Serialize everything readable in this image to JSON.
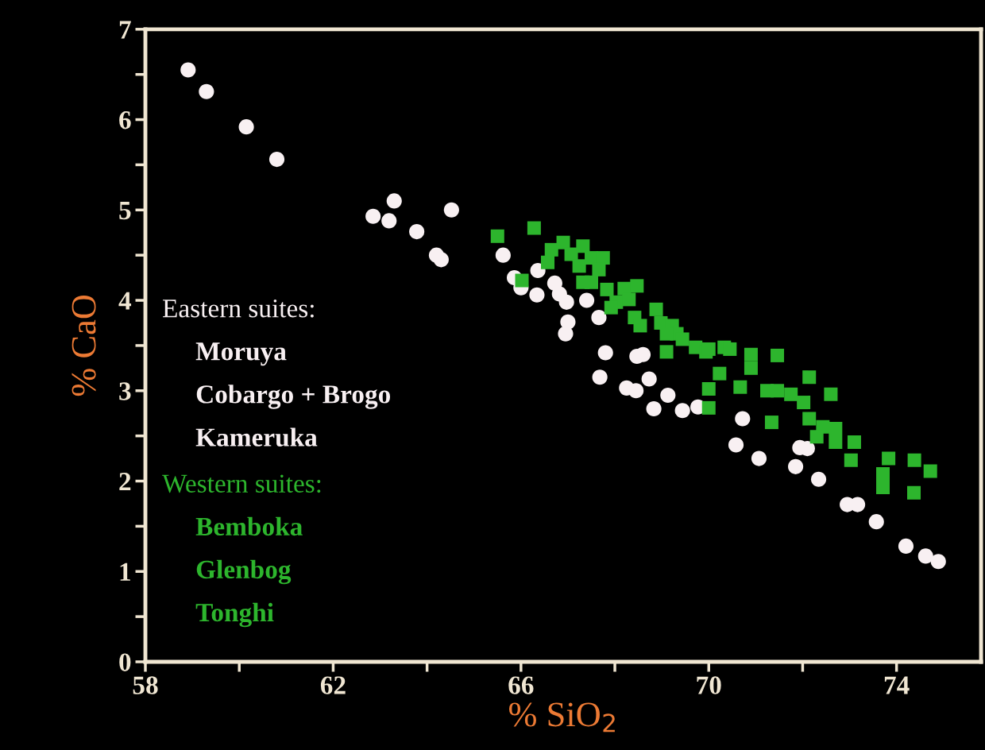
{
  "chart_data": {
    "type": "scatter",
    "xlabel": "% SiO$_{2}$",
    "ylabel": "% CaO",
    "xlim": [
      58,
      75.8
    ],
    "ylim": [
      0,
      7
    ],
    "xticks": [
      58,
      {
        "value": 60,
        "label": null
      },
      62,
      {
        "value": 64,
        "label": null
      },
      66,
      {
        "value": 68,
        "label": null
      },
      70,
      {
        "value": 72,
        "label": null
      },
      74
    ],
    "yticks": [
      0,
      {
        "value": 0.5,
        "label": null
      },
      1,
      {
        "value": 1.5,
        "label": null
      },
      2,
      {
        "value": 2.5,
        "label": null
      },
      3,
      {
        "value": 3.5,
        "label": null
      },
      4,
      {
        "value": 4.5,
        "label": null
      },
      5,
      {
        "value": 5.5,
        "label": null
      },
      6,
      {
        "value": 6.5,
        "label": null
      },
      7
    ],
    "grid": false,
    "legend": "left",
    "annotations": [
      "Moruya",
      "Cobargo + Brogo",
      "Kameruka",
      "Bemboka",
      "Glenbog",
      "Tonghi"
    ],
    "series": [
      {
        "name": "Eastern suites:",
        "color": "#f8f0f2",
        "marker": "circle",
        "x": [
          58.91,
          59.3,
          60.15,
          60.8,
          62.85,
          63.19,
          63.3,
          63.78,
          64.2,
          64.3,
          64.52,
          65.62,
          65.86,
          66.0,
          66.34,
          66.36,
          66.72,
          66.82,
          66.97,
          66.95,
          67.0,
          67.4,
          67.66,
          67.8,
          67.68,
          68.47,
          68.6,
          68.25,
          68.45,
          68.73,
          68.83,
          69.13,
          69.44,
          69.77,
          70.72,
          70.58,
          71.07,
          71.85,
          71.94,
          72.1,
          72.34,
          72.95,
          73.17,
          73.57,
          74.2,
          74.62,
          74.89
        ],
        "values": [
          6.55,
          6.31,
          5.92,
          5.56,
          4.93,
          4.88,
          5.1,
          4.76,
          4.5,
          4.45,
          5.0,
          4.5,
          4.25,
          4.14,
          4.06,
          4.33,
          4.19,
          4.07,
          3.98,
          3.63,
          3.76,
          4.0,
          3.81,
          3.42,
          3.15,
          3.38,
          3.4,
          3.03,
          3.0,
          3.13,
          2.8,
          2.95,
          2.78,
          2.82,
          2.69,
          2.4,
          2.25,
          2.16,
          2.37,
          2.36,
          2.02,
          1.74,
          1.74,
          1.55,
          1.28,
          1.17,
          1.11
        ]
      },
      {
        "name": "Western suites:",
        "color": "#2db52d",
        "marker": "square",
        "x": [
          65.5,
          66.28,
          66.02,
          66.65,
          66.57,
          66.9,
          67.07,
          67.32,
          67.24,
          67.5,
          67.75,
          67.66,
          67.5,
          67.83,
          67.32,
          68.2,
          68.47,
          68.03,
          68.3,
          67.92,
          68.42,
          68.54,
          68.88,
          68.98,
          69.22,
          69.32,
          69.1,
          69.44,
          69.1,
          69.72,
          69.94,
          70.33,
          70.23,
          70.0,
          70.0,
          70.0,
          70.45,
          70.9,
          70.9,
          71.46,
          70.67,
          72.14,
          72.6,
          71.24,
          71.46,
          71.75,
          72.02,
          71.34,
          72.14,
          72.43,
          72.7,
          72.3,
          72.7,
          73.1,
          73.03,
          73.83,
          73.71,
          73.71,
          74.38,
          74.72,
          74.37
        ],
        "values": [
          4.71,
          4.8,
          4.22,
          4.56,
          4.42,
          4.64,
          4.51,
          4.6,
          4.38,
          4.47,
          4.47,
          4.34,
          4.2,
          4.12,
          4.2,
          4.13,
          4.16,
          3.98,
          4.01,
          3.92,
          3.81,
          3.72,
          3.9,
          3.75,
          3.72,
          3.63,
          3.63,
          3.57,
          3.43,
          3.48,
          3.43,
          3.48,
          3.19,
          3.02,
          2.81,
          3.46,
          3.46,
          3.4,
          3.25,
          3.39,
          3.04,
          3.15,
          2.96,
          3.0,
          3.0,
          2.96,
          2.87,
          2.65,
          2.69,
          2.6,
          2.58,
          2.49,
          2.43,
          2.43,
          2.23,
          2.25,
          2.08,
          1.93,
          2.23,
          2.11,
          1.87
        ]
      }
    ]
  }
}
